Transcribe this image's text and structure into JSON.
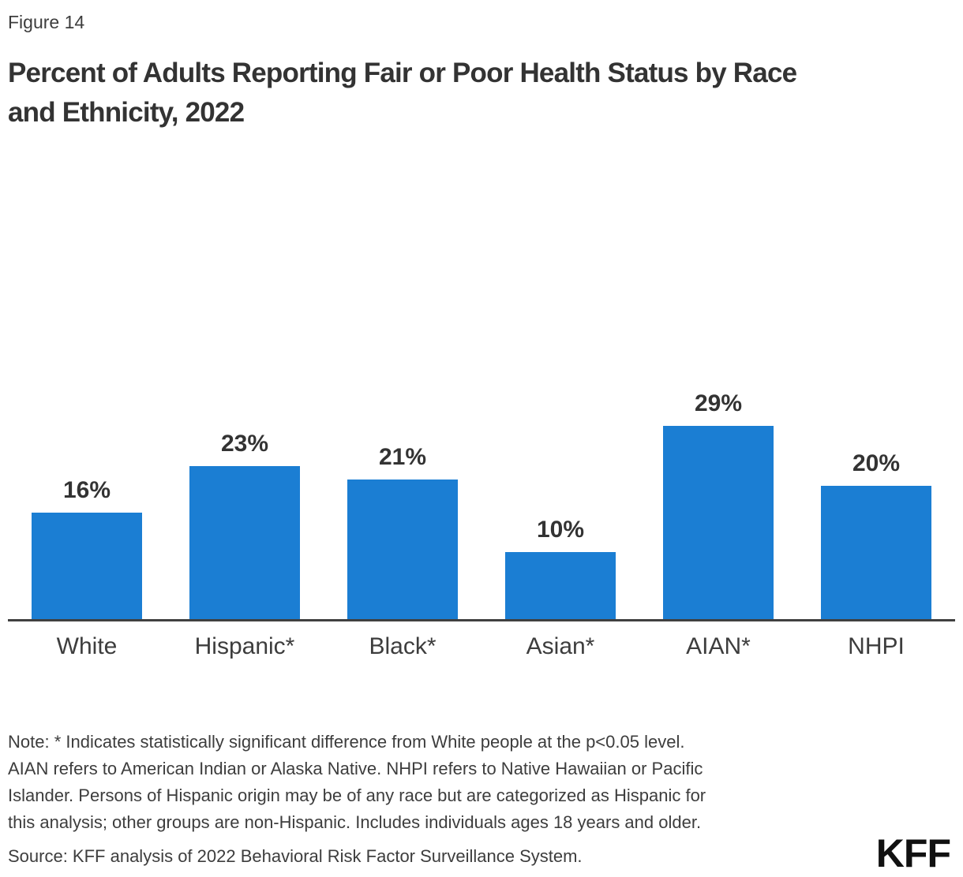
{
  "figure_label": "Figure 14",
  "title_lines": [
    "Percent of Adults Reporting Fair or Poor Health Status by Race",
    "and Ethnicity, 2022"
  ],
  "chart_data": {
    "type": "bar",
    "title": "Percent of Adults Reporting Fair or Poor Health Status by Race and Ethnicity, 2022",
    "categories": [
      "White",
      "Hispanic*",
      "Black*",
      "Asian*",
      "AIAN*",
      "NHPI"
    ],
    "values": [
      16,
      23,
      21,
      10,
      29,
      20
    ],
    "value_labels": [
      "16%",
      "23%",
      "21%",
      "10%",
      "29%",
      "20%"
    ],
    "xlabel": "",
    "ylabel": "",
    "ylim": [
      0,
      32
    ],
    "grid": false,
    "legend": "none",
    "bar_color": "#1b7ed3"
  },
  "note_lines": [
    "Note: * Indicates statistically significant difference from White people at the p<0.05 level.",
    "AIAN refers to American Indian or Alaska Native. NHPI refers to Native Hawaiian or Pacific",
    "Islander. Persons of Hispanic origin may be of any race but are categorized as Hispanic for",
    "this analysis; other groups are non-Hispanic. Includes individuals ages 18 years and older."
  ],
  "source": "Source: KFF analysis of 2022 Behavioral Risk Factor Surveillance System.",
  "logo": "KFF",
  "colors": {
    "bar": "#1b7ed3",
    "title_text": "#333333",
    "body_text": "#3d3d3d",
    "axis": "#404040",
    "logo": "#111111",
    "background": "#ffffff"
  }
}
